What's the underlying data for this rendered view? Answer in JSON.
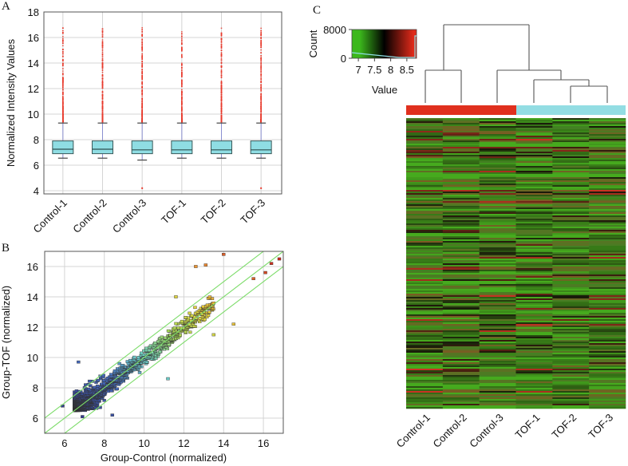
{
  "chart_data": [
    {
      "panel": "A",
      "type": "box",
      "panel_label": "A",
      "ylabel": "Normalized Intensity Values",
      "xlabel": "",
      "ylim": [
        3.75,
        18
      ],
      "yticks": [
        "4",
        "6",
        "8",
        "10",
        "12",
        "14",
        "16",
        "18"
      ],
      "grid": true,
      "categories": [
        "Control-1",
        "Control-2",
        "Control-3",
        "TOF-1",
        "TOF-2",
        "TOF-3"
      ],
      "series": [
        {
          "name": "Control-1",
          "whisker_low": 6.55,
          "q1": 6.9,
          "median": 7.25,
          "q3": 7.9,
          "whisker_high": 9.3,
          "outlier_max": 16.8,
          "outlier_low": null
        },
        {
          "name": "Control-2",
          "whisker_low": 6.55,
          "q1": 6.9,
          "median": 7.25,
          "q3": 7.9,
          "whisker_high": 9.3,
          "outlier_max": 16.8,
          "outlier_low": null
        },
        {
          "name": "Control-3",
          "whisker_low": 6.4,
          "q1": 6.9,
          "median": 7.2,
          "q3": 7.9,
          "whisker_high": 9.3,
          "outlier_max": 16.8,
          "outlier_low": 4.2
        },
        {
          "name": "TOF-1",
          "whisker_low": 6.55,
          "q1": 6.9,
          "median": 7.2,
          "q3": 7.9,
          "whisker_high": 9.3,
          "outlier_max": 16.8,
          "outlier_low": null
        },
        {
          "name": "TOF-2",
          "whisker_low": 6.55,
          "q1": 6.9,
          "median": 7.2,
          "q3": 7.9,
          "whisker_high": 9.3,
          "outlier_max": 16.8,
          "outlier_low": null
        },
        {
          "name": "TOF-3",
          "whisker_low": 6.55,
          "q1": 6.9,
          "median": 7.2,
          "q3": 7.9,
          "whisker_high": 9.3,
          "outlier_max": 16.8,
          "outlier_low": 4.2
        }
      ],
      "colors": {
        "box": "#8fdde3",
        "outlier": "#e8382a",
        "whisker": "#8a8fd0"
      }
    },
    {
      "panel": "B",
      "type": "scatter",
      "panel_label": "B",
      "xlabel": "Group-Control (normalized)",
      "ylabel": "Group-TOF (normalized)",
      "xlim": [
        5,
        17
      ],
      "ylim": [
        5,
        17
      ],
      "xticks": [
        "6",
        "8",
        "10",
        "12",
        "14",
        "16"
      ],
      "yticks": [
        "6",
        "8",
        "10",
        "12",
        "14",
        "16"
      ],
      "grid": true,
      "reference_lines": [
        {
          "intercept": 0
        },
        {
          "intercept": 1
        },
        {
          "intercept": -1
        }
      ],
      "highlighted_points": [
        {
          "x": 14.0,
          "y": 16.8
        },
        {
          "x": 13.1,
          "y": 16.1
        },
        {
          "x": 12.6,
          "y": 16.0
        },
        {
          "x": 16.8,
          "y": 16.5
        },
        {
          "x": 16.4,
          "y": 16.2
        },
        {
          "x": 16.1,
          "y": 15.6
        },
        {
          "x": 15.5,
          "y": 15.2
        },
        {
          "x": 11.6,
          "y": 14.0
        },
        {
          "x": 14.5,
          "y": 12.2
        },
        {
          "x": 13.5,
          "y": 11.5
        },
        {
          "x": 6.7,
          "y": 9.7
        },
        {
          "x": 5.9,
          "y": 6.8
        },
        {
          "x": 6.9,
          "y": 6.1
        },
        {
          "x": 8.4,
          "y": 6.2
        },
        {
          "x": 11.2,
          "y": 8.6
        }
      ],
      "cloud": {
        "n": 1500,
        "x_range": [
          6.5,
          12
        ],
        "spread": 0.6
      }
    },
    {
      "panel": "C",
      "type": "heatmap",
      "panel_label": "C",
      "columns": [
        "Control-1",
        "Control-2",
        "Control-3",
        "TOF-1",
        "TOF-2",
        "TOF-3"
      ],
      "groups": [
        {
          "name": "Control",
          "members": [
            "Control-1",
            "Control-2",
            "Control-3"
          ],
          "color": "#e0301e"
        },
        {
          "name": "TOF",
          "members": [
            "TOF-1",
            "TOF-2",
            "TOF-3"
          ],
          "color": "#93dde3"
        }
      ],
      "dendrogram": [
        {
          "merge": [
            "Control-1",
            "Control-2"
          ],
          "height": 0.54
        },
        {
          "merge": [
            "TOF-2",
            "TOF-3"
          ],
          "height": 0.27
        },
        {
          "merge": [
            "TOF-1",
            "TOF-2|TOF-3"
          ],
          "height": 0.37
        },
        {
          "merge": [
            "Control-3",
            "TOF-1|TOF-2|TOF-3"
          ],
          "height": 0.54
        },
        {
          "merge": [
            "Control-1|Control-2",
            "Control-3|TOF"
          ],
          "height": 1.0
        }
      ],
      "color_key": {
        "title_x": "Value",
        "title_y": "Count",
        "xticks": [
          "7",
          "7.5",
          "8",
          "8.5"
        ],
        "yticks": [
          "0",
          "8000"
        ],
        "value_range": [
          6.8,
          8.8
        ],
        "colors": [
          "#3cb81c",
          "#000000",
          "#e02a1a"
        ]
      },
      "rows": 182
    }
  ]
}
